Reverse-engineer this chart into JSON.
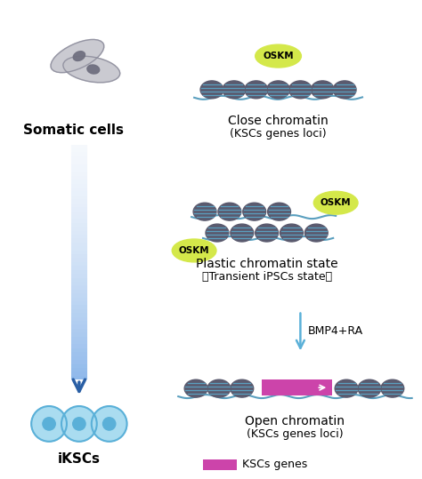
{
  "bg_color": "#ffffff",
  "somatic_text": "Somatic cells",
  "ikscs_text": "iKSCs",
  "close_chromatin_title": "Close chromatin",
  "close_chromatin_sub": "(KSCs genes loci)",
  "plastic_title": "Plastic chromatin state",
  "plastic_sub": "（Transient iPSCs state）",
  "open_chromatin_title": "Open chromatin",
  "open_chromatin_sub": "(KSCs genes loci)",
  "bmp4ra_text": "BMP4+RA",
  "oskm_color": "#d4e84a",
  "oskm_text": "OSKM",
  "nucleosome_body_color": "#5a5a6e",
  "nucleosome_line_color": "#5a9fbf",
  "dna_line_color": "#5a9fbf",
  "arrow_color": "#2a5fa5",
  "cell_fill_color": "#aadcf0",
  "cell_border_color": "#5ab0d8",
  "legend_rect_color": "#cc44aa",
  "legend_text": "KSCs genes",
  "small_arrow_color": "#5ab0d8",
  "font_size_labels": 10,
  "font_size_oskm": 8,
  "font_size_legend": 9
}
